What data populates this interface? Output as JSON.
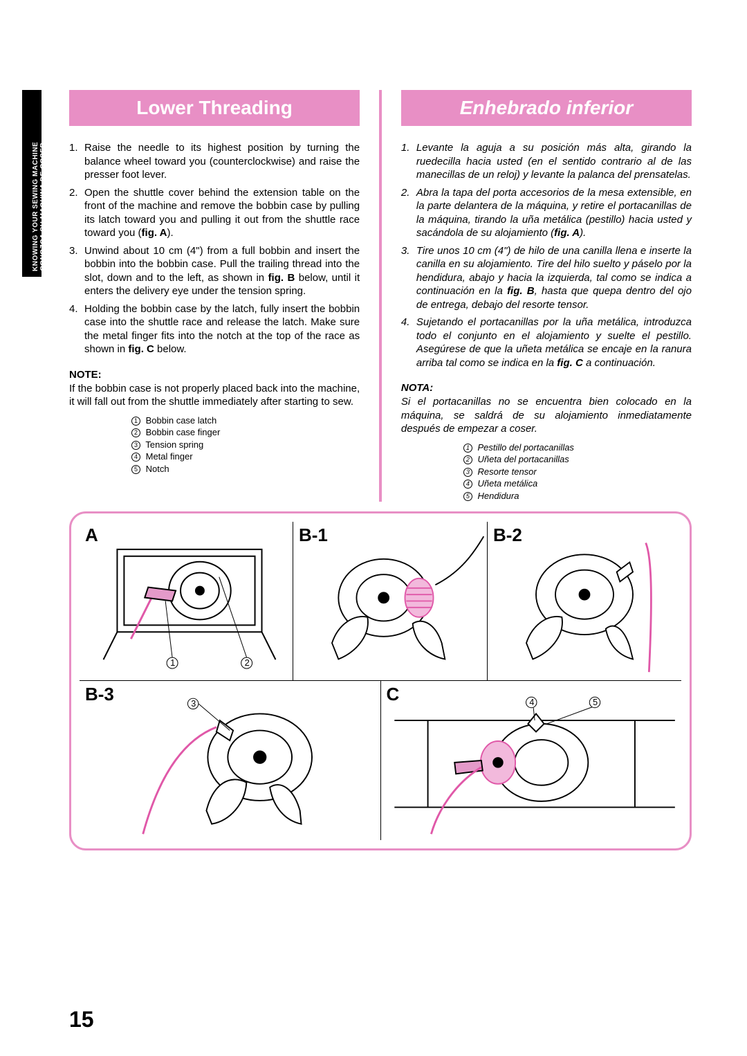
{
  "page_number": "15",
  "sidebar": {
    "line1": "KNOWING YOUR SEWING MACHINE",
    "line2": "CONOZCA SU MAQUINA DE COSER"
  },
  "accent_color": "#e88fc5",
  "english": {
    "title": "Lower Threading",
    "steps": [
      {
        "n": "1.",
        "t": "Raise the needle to its highest position by turning the balance wheel toward you (counterclockwise) and raise the presser foot lever."
      },
      {
        "n": "2.",
        "t": "Open the shuttle cover behind the extension table on the front of the machine and remove the bobbin case by pulling its latch toward you and pulling it out from the shuttle race toward you (fig. A)."
      },
      {
        "n": "3.",
        "t": "Unwind about 10 cm (4\") from a full bobbin and insert the bobbin into the bobbin case. Pull the trailing thread into the slot, down and to the left, as shown in fig. B below, until it enters the delivery eye under the tension spring."
      },
      {
        "n": "4.",
        "t": "Holding the bobbin case by the latch, fully insert the bobbin case into the shuttle race and release the latch. Make sure the metal finger fits into the notch at the top of the race as shown in fig. C below."
      }
    ],
    "note_label": "NOTE:",
    "note_body": "If the bobbin case is not properly placed back into the machine, it will fall out from the shuttle immediately after starting to sew.",
    "legend": [
      "Bobbin case latch",
      "Bobbin case finger",
      "Tension spring",
      "Metal finger",
      "Notch"
    ]
  },
  "spanish": {
    "title": "Enhebrado inferior",
    "steps": [
      {
        "n": "1.",
        "t": "Levante la aguja a su posición más alta, girando la ruedecilla hacia usted (en el sentido contrario al de las manecillas de un reloj) y levante la palanca del prensatelas."
      },
      {
        "n": "2.",
        "t": "Abra la tapa del porta accesorios de la mesa extensible, en la parte delantera de la máquina, y retire el portacanillas de la máquina, tirando la uña metálica (pestillo) hacia usted y sacándola de su alojamiento (fig. A)."
      },
      {
        "n": "3.",
        "t": "Tire unos 10 cm (4\") de hilo de una canilla llena e inserte la canilla en su alojamiento. Tire del hilo suelto y páselo por la hendidura, abajo y hacia la izquierda, tal como se indica a continuación en la fig. B, hasta que quepa dentro del ojo de entrega, debajo del resorte tensor."
      },
      {
        "n": "4.",
        "t": "Sujetando el portacanillas por la uña metálica, introduzca todo el conjunto en el alojamiento y suelte el pestillo. Asegúrese de que la uñeta metálica se encaje en la ranura arriba tal como se indica en la fig. C a continuación."
      }
    ],
    "note_label": "NOTA:",
    "note_body": "Si el portacanillas no se encuentra bien colocado en la máquina, se saldrá de su alojamiento inmediatamente después de empezar a coser.",
    "legend": [
      "Pestillo del portacanillas",
      "Uñeta del portacanillas",
      "Resorte tensor",
      "Uñeta metálica",
      "Hendidura"
    ]
  },
  "figures": {
    "labels": {
      "a": "A",
      "b1": "B-1",
      "b2": "B-2",
      "b3": "B-3",
      "c": "C"
    },
    "callouts": {
      "c1": "1",
      "c2": "2",
      "c3": "3",
      "c4": "4",
      "c5": "5"
    }
  }
}
